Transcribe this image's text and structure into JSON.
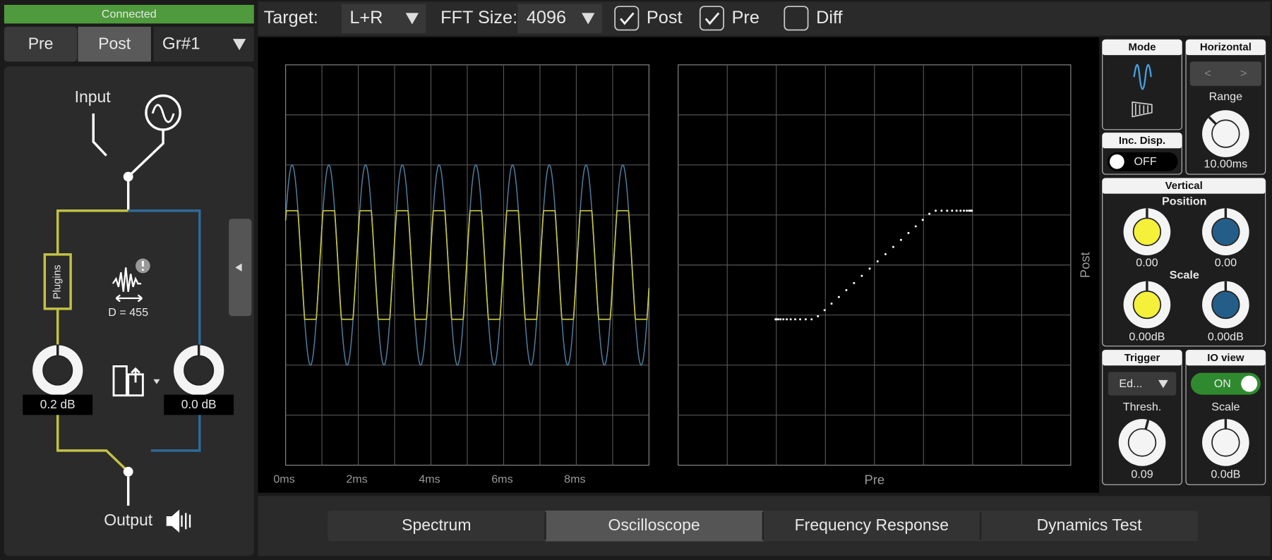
{
  "status": "Connected",
  "sidebar": {
    "tabs": [
      "Pre",
      "Post"
    ],
    "active_tab": 1,
    "group": "Gr#1",
    "input": "Input",
    "plugins": "Plugins",
    "delay": "D = 455",
    "left_gain": "0.2 dB",
    "right_gain": "0.0 dB",
    "output": "Output"
  },
  "toolbar": {
    "target_label": "Target:",
    "target": "L+R",
    "fft_label": "FFT Size:",
    "fft": "4096",
    "checkboxes": [
      {
        "label": "Post",
        "checked": true
      },
      {
        "label": "Pre",
        "checked": true
      },
      {
        "label": "Diff",
        "checked": false
      }
    ]
  },
  "scope": {
    "time_labels": [
      "0ms",
      "2ms",
      "4ms",
      "6ms",
      "8ms"
    ],
    "xy_x_label": "Pre",
    "xy_y_label": "Post"
  },
  "controls": {
    "mode": "Mode",
    "horizontal": "Horizontal",
    "prev": "<",
    "next": ">",
    "range": "Range",
    "range_value": "10.00ms",
    "inc_disp": "Inc. Disp.",
    "inc_disp_state": "OFF",
    "vertical": "Vertical",
    "position": "Position",
    "pos_left": "0.00",
    "pos_right": "0.00",
    "scale": "Scale",
    "scale_left": "0.00dB",
    "scale_right": "0.00dB",
    "trigger": "Trigger",
    "trigger_mode": "Ed...",
    "thresh": "Thresh.",
    "thresh_value": "0.09",
    "io_view": "IO view",
    "io_state": "ON",
    "io_scale": "Scale",
    "io_scale_value": "0.0dB"
  },
  "tabs": {
    "items": [
      "Spectrum",
      "Oscilloscope",
      "Frequency Response",
      "Dynamics Test"
    ],
    "active": 1
  }
}
